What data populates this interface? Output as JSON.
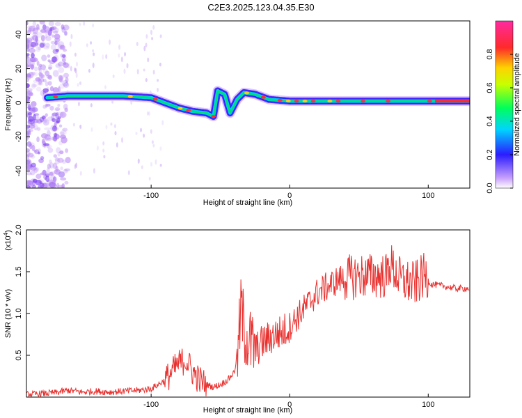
{
  "title": "C2E3.2025.123.04.35.E30",
  "chart_data": [
    {
      "type": "heatmap",
      "xlabel": "Height of straight line (km)",
      "ylabel": "Frequency (Hz)",
      "xlim": [
        -190,
        130
      ],
      "ylim": [
        -50,
        48
      ],
      "xticks": [
        -100,
        0,
        100
      ],
      "yticks": [
        -40,
        -20,
        0,
        20,
        40
      ],
      "colorbar": {
        "label": "Normalized spectral amplitude",
        "range": [
          0,
          1
        ],
        "ticks": [
          "0.0",
          "0.2",
          "0.4",
          "0.6",
          "0.8"
        ],
        "tick_values": [
          0,
          0.2,
          0.4,
          0.6,
          0.8
        ]
      },
      "ridge": [
        {
          "x": -175,
          "y": 3
        },
        {
          "x": -160,
          "y": 4
        },
        {
          "x": -140,
          "y": 4
        },
        {
          "x": -120,
          "y": 4
        },
        {
          "x": -100,
          "y": 3
        },
        {
          "x": -90,
          "y": 0
        },
        {
          "x": -80,
          "y": -3
        },
        {
          "x": -70,
          "y": -5
        },
        {
          "x": -60,
          "y": -6
        },
        {
          "x": -55,
          "y": -8
        },
        {
          "x": -52,
          "y": 7
        },
        {
          "x": -47,
          "y": 5
        },
        {
          "x": -43,
          "y": -6
        },
        {
          "x": -38,
          "y": 2
        },
        {
          "x": -33,
          "y": 6
        },
        {
          "x": -25,
          "y": 5
        },
        {
          "x": -15,
          "y": 2
        },
        {
          "x": 0,
          "y": 1
        },
        {
          "x": 30,
          "y": 1
        },
        {
          "x": 60,
          "y": 1
        },
        {
          "x": 90,
          "y": 1
        },
        {
          "x": 130,
          "y": 1
        }
      ]
    },
    {
      "type": "line",
      "xlabel": "Height of straight line (km)",
      "ylabel": "SNR (10 * v/v)",
      "multiplier_label": "(x10",
      "multiplier_exp": "4",
      "multiplier_close": ")",
      "xlim": [
        -190,
        130
      ],
      "ylim": [
        0,
        2.0
      ],
      "xticks": [
        -100,
        0,
        100
      ],
      "yticks": [
        "0.5",
        "1.0",
        "1.5",
        "2.0"
      ],
      "ytick_values": [
        0.5,
        1.0,
        1.5,
        2.0
      ],
      "color": "#e8312f",
      "series": [
        {
          "x": [
            -190,
            -170,
            -160,
            -150,
            -140,
            -130,
            -120,
            -110,
            -100,
            -90,
            -85,
            -80,
            -75,
            -70,
            -65,
            -60,
            -55,
            -50,
            -45,
            -40,
            -37,
            -35,
            -33,
            -30,
            -27,
            -25,
            -20,
            -15,
            -10,
            -5,
            0,
            5,
            10,
            15,
            20,
            25,
            30,
            35,
            40,
            50,
            60,
            70,
            72,
            80,
            90,
            97,
            100,
            102,
            110,
            120,
            130
          ],
          "y": [
            0.03,
            0.05,
            0.08,
            0.06,
            0.07,
            0.06,
            0.07,
            0.08,
            0.1,
            0.2,
            0.3,
            0.4,
            0.45,
            0.3,
            0.2,
            0.15,
            0.12,
            0.15,
            0.2,
            0.3,
            0.6,
            1.1,
            0.8,
            0.7,
            0.6,
            0.55,
            0.65,
            0.7,
            0.75,
            0.78,
            0.85,
            0.95,
            1.05,
            1.15,
            1.25,
            1.3,
            1.35,
            1.4,
            1.42,
            1.45,
            1.45,
            1.45,
            1.6,
            1.4,
            1.35,
            1.45,
            1.4,
            1.35,
            1.33,
            1.3,
            1.3
          ]
        }
      ]
    }
  ]
}
